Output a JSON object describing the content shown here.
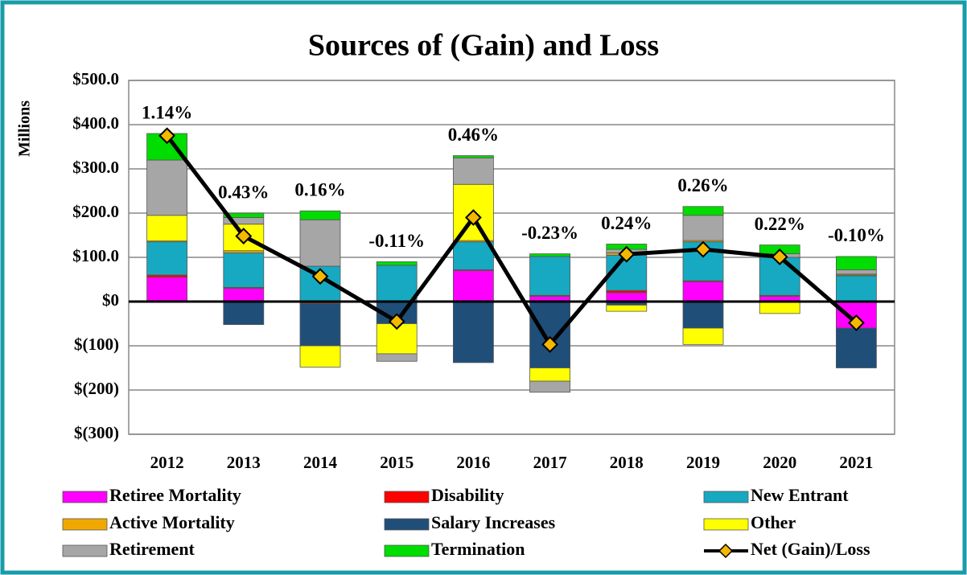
{
  "chart_data": {
    "type": "bar",
    "stacked": true,
    "title": "Sources of (Gain) and Loss",
    "y_label": "Millions",
    "categories": [
      "2012",
      "2013",
      "2014",
      "2015",
      "2016",
      "2017",
      "2018",
      "2019",
      "2020",
      "2021"
    ],
    "annotations": [
      "1.14%",
      "0.43%",
      "0.16%",
      "-0.11%",
      "0.46%",
      "-0.23%",
      "0.24%",
      "0.26%",
      "0.22%",
      "-0.10%"
    ],
    "series": [
      {
        "name": "Retiree Mortality",
        "color": "#ff00ff",
        "values": [
          55,
          30,
          -3,
          0,
          70,
          12,
          20,
          45,
          12,
          -60
        ]
      },
      {
        "name": "Disability",
        "color": "#ff0000",
        "values": [
          5,
          2,
          -2,
          0,
          2,
          2,
          5,
          2,
          2,
          0
        ]
      },
      {
        "name": "New Entrant",
        "color": "#17a9c1",
        "values": [
          75,
          78,
          80,
          82,
          63,
          88,
          80,
          88,
          86,
          58
        ]
      },
      {
        "name": "Active Mortality",
        "color": "#f0a800",
        "values": [
          2,
          5,
          0,
          0,
          3,
          0,
          5,
          3,
          0,
          2
        ]
      },
      {
        "name": "Salary Increases",
        "color": "#1f4e79",
        "values": [
          0,
          -52,
          -95,
          -50,
          -138,
          -150,
          -8,
          -60,
          0,
          -90
        ]
      },
      {
        "name": "Other",
        "color": "#ffff00",
        "values": [
          58,
          60,
          -48,
          -68,
          127,
          -30,
          -14,
          -37,
          -27,
          2
        ]
      },
      {
        "name": "Retirement",
        "color": "#a6a6a6",
        "values": [
          125,
          15,
          105,
          -17,
          60,
          -25,
          8,
          57,
          8,
          10
        ]
      },
      {
        "name": "Termination",
        "color": "#00dd00",
        "values": [
          60,
          10,
          20,
          8,
          5,
          6,
          12,
          20,
          20,
          30
        ]
      },
      {
        "name": "Net (Gain)/Loss",
        "type": "line",
        "color": "#000000",
        "marker_color": "#f5b800",
        "values": [
          375,
          148,
          57,
          -45,
          190,
          -97,
          107,
          118,
          101,
          -48
        ]
      }
    ],
    "ylim": [
      -300,
      500
    ],
    "yticks": [
      {
        "value": -300,
        "label": "$(300)"
      },
      {
        "value": -200,
        "label": "$(200)"
      },
      {
        "value": -100,
        "label": "$(100)"
      },
      {
        "value": 0,
        "label": "$0"
      },
      {
        "value": 100,
        "label": "$100.0"
      },
      {
        "value": 200,
        "label": "$200.0"
      },
      {
        "value": 300,
        "label": "$300.0"
      },
      {
        "value": 400,
        "label": "$400.0"
      },
      {
        "value": 500,
        "label": "$500.0"
      }
    ],
    "grid": true,
    "legend": "bottom"
  }
}
